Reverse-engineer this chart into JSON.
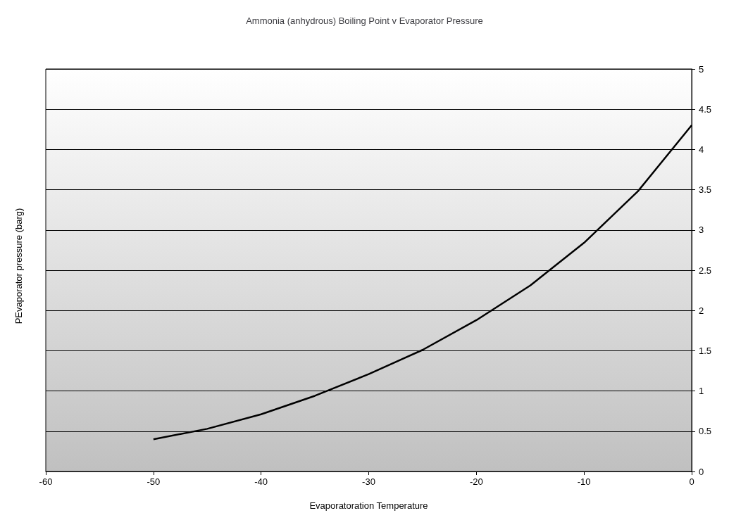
{
  "chart_data": {
    "type": "line",
    "title": "Ammonia (anhydrous) Boiling Point v Evaporator Pressure",
    "xlabel": "Evaporatoration Temperature",
    "ylabel": "PEvaporator pressure (barg)",
    "series": [
      {
        "color": "#000000",
        "x": [
          -50,
          -45,
          -40,
          -35,
          -30,
          -25,
          -20,
          -15,
          -10,
          -5,
          0
        ],
        "values": [
          0.4,
          0.53,
          0.71,
          0.94,
          1.21,
          1.51,
          1.88,
          2.31,
          2.84,
          3.48,
          4.3
        ]
      }
    ],
    "xlim": [
      -60,
      0
    ],
    "xticks": [
      -60,
      -50,
      -40,
      -30,
      -20,
      -10,
      0
    ],
    "ylim": [
      0,
      5
    ],
    "yticks": [
      0,
      0.5,
      1,
      1.5,
      2,
      2.5,
      3,
      3.5,
      4,
      4.5,
      5
    ],
    "grid": "y",
    "marker": "none",
    "line_style": "solid"
  }
}
